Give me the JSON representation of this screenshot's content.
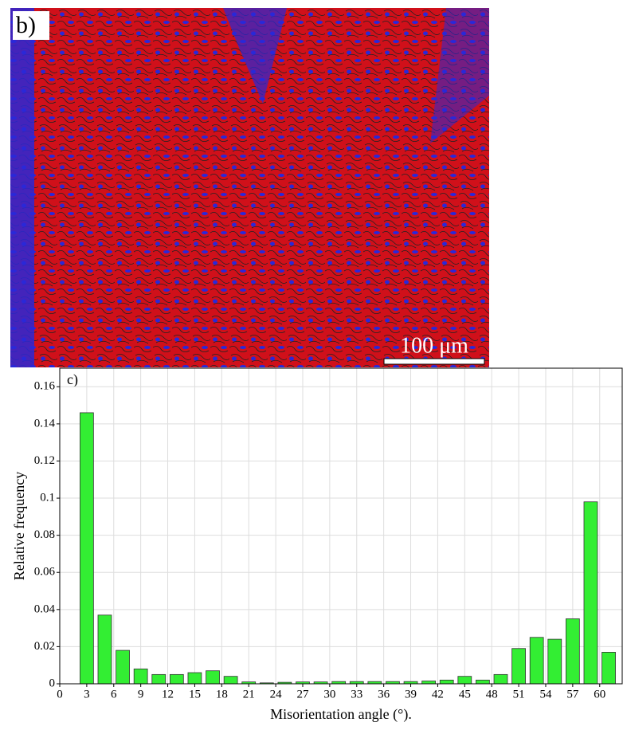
{
  "image_panel": {
    "label": "b)",
    "scale_bar": "100 μm"
  },
  "chart_data": {
    "type": "bar",
    "panel_label": "c)",
    "x_label": "Misorientation angle (°).",
    "y_label": "Relative frequency",
    "x": [
      3,
      5,
      7,
      9,
      11,
      13,
      15,
      17,
      19,
      21,
      23,
      25,
      27,
      29,
      31,
      33,
      35,
      37,
      39,
      41,
      43,
      45,
      47,
      49,
      51,
      53,
      55,
      57,
      59,
      61
    ],
    "values": [
      0.146,
      0.037,
      0.018,
      0.008,
      0.005,
      0.005,
      0.006,
      0.007,
      0.004,
      0.001,
      0.0005,
      0.0008,
      0.001,
      0.001,
      0.0012,
      0.0012,
      0.0012,
      0.0012,
      0.0012,
      0.0015,
      0.002,
      0.004,
      0.002,
      0.005,
      0.019,
      0.025,
      0.024,
      0.035,
      0.098,
      0.017
    ],
    "color": "#33ee33",
    "xlim": [
      0,
      62.5
    ],
    "xticks": [
      0,
      3,
      6,
      9,
      12,
      15,
      18,
      21,
      24,
      27,
      30,
      33,
      36,
      39,
      42,
      45,
      48,
      51,
      54,
      57,
      60
    ],
    "ylim": [
      0,
      0.17
    ],
    "yticks": [
      0,
      0.02,
      0.04,
      0.06,
      0.08,
      0.1,
      0.12,
      0.14,
      0.16
    ],
    "grid": true
  }
}
